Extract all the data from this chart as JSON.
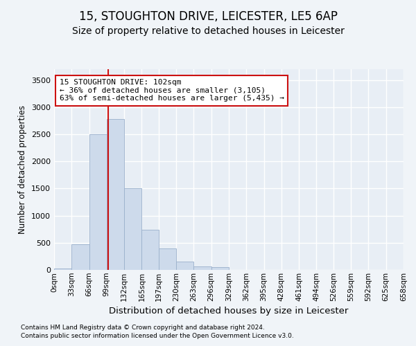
{
  "title": "15, STOUGHTON DRIVE, LEICESTER, LE5 6AP",
  "subtitle": "Size of property relative to detached houses in Leicester",
  "xlabel": "Distribution of detached houses by size in Leicester",
  "ylabel": "Number of detached properties",
  "footnote1": "Contains HM Land Registry data © Crown copyright and database right 2024.",
  "footnote2": "Contains public sector information licensed under the Open Government Licence v3.0.",
  "property_size": 102,
  "property_label": "15 STOUGHTON DRIVE: 102sqm",
  "annotation_line1": "← 36% of detached houses are smaller (3,105)",
  "annotation_line2": "63% of semi-detached houses are larger (5,435) →",
  "bar_color": "#cddaeb",
  "bar_edge_color": "#9ab0cc",
  "vline_color": "#cc1111",
  "annotation_box_edge": "#cc1111",
  "bin_edges": [
    0,
    33,
    66,
    99,
    132,
    165,
    197,
    230,
    263,
    296,
    329,
    362,
    395,
    428,
    461,
    494,
    526,
    559,
    592,
    625,
    658
  ],
  "bin_labels": [
    "0sqm",
    "33sqm",
    "66sqm",
    "99sqm",
    "132sqm",
    "165sqm",
    "197sqm",
    "230sqm",
    "263sqm",
    "296sqm",
    "329sqm",
    "362sqm",
    "395sqm",
    "428sqm",
    "461sqm",
    "494sqm",
    "526sqm",
    "559sqm",
    "592sqm",
    "625sqm",
    "658sqm"
  ],
  "bar_heights": [
    30,
    470,
    2500,
    2780,
    1500,
    740,
    400,
    150,
    60,
    50,
    0,
    0,
    0,
    0,
    0,
    0,
    0,
    0,
    0,
    0
  ],
  "ylim": [
    0,
    3700
  ],
  "yticks": [
    0,
    500,
    1000,
    1500,
    2000,
    2500,
    3000,
    3500
  ],
  "background_color": "#f0f4f8",
  "plot_background": "#e8eef5",
  "grid_color": "#ffffff",
  "title_fontsize": 12,
  "subtitle_fontsize": 10
}
